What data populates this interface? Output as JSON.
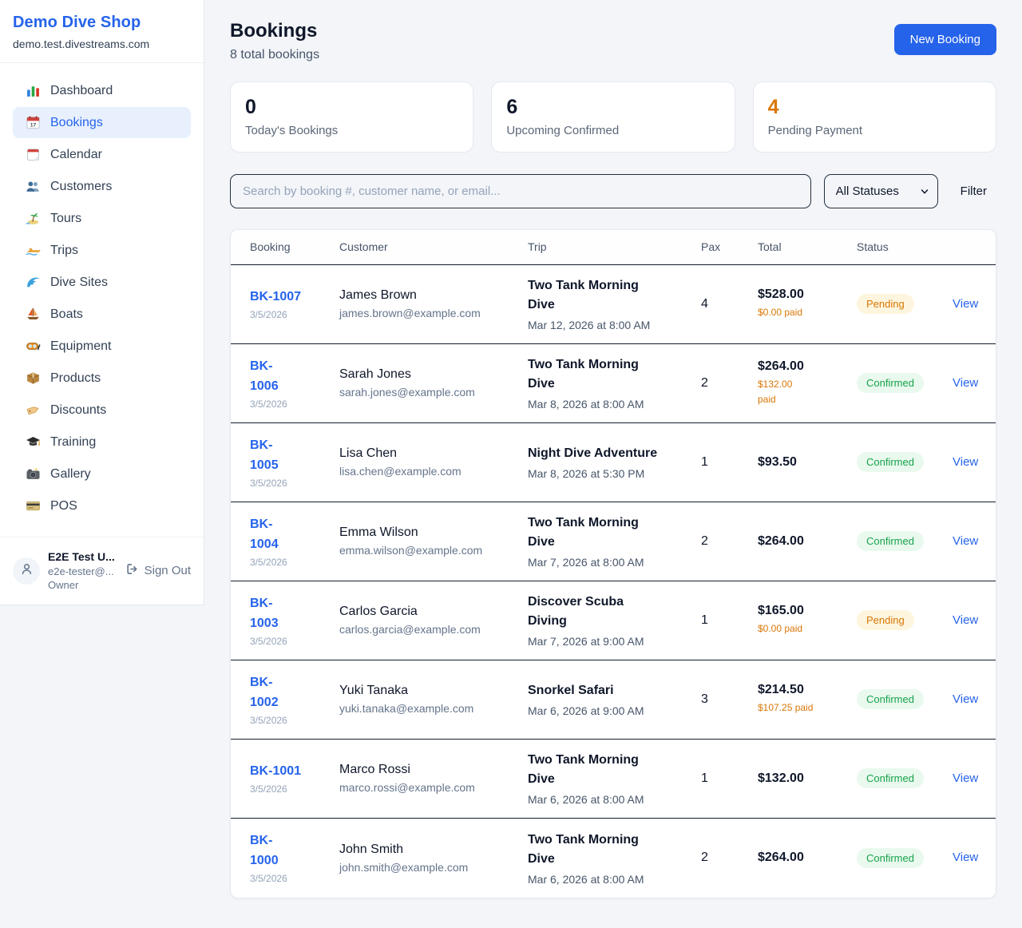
{
  "colors": {
    "primary": "#2563eb",
    "pending_text": "#d97706",
    "pending_bg": "#fdf5dd",
    "confirmed_text": "#16a34a",
    "confirmed_bg": "#e9f9ee",
    "page_bg": "#f3f5f9"
  },
  "sidebar": {
    "brand": "Demo Dive Shop",
    "domain": "demo.test.divestreams.com",
    "items": [
      {
        "label": "Dashboard",
        "icon": "bar-chart",
        "active": false
      },
      {
        "label": "Bookings",
        "icon": "calendar-date",
        "active": true
      },
      {
        "label": "Calendar",
        "icon": "tear-off-calendar",
        "active": false
      },
      {
        "label": "Customers",
        "icon": "people",
        "active": false
      },
      {
        "label": "Tours",
        "icon": "island",
        "active": false
      },
      {
        "label": "Trips",
        "icon": "speedboat",
        "active": false
      },
      {
        "label": "Dive Sites",
        "icon": "wave",
        "active": false
      },
      {
        "label": "Boats",
        "icon": "sailboat",
        "active": false
      },
      {
        "label": "Equipment",
        "icon": "diving-mask",
        "active": false
      },
      {
        "label": "Products",
        "icon": "package",
        "active": false
      },
      {
        "label": "Discounts",
        "icon": "tag",
        "active": false
      },
      {
        "label": "Training",
        "icon": "graduation-cap",
        "active": false
      },
      {
        "label": "Gallery",
        "icon": "camera",
        "active": false
      },
      {
        "label": "POS",
        "icon": "credit-card",
        "active": false
      }
    ],
    "user": {
      "name": "E2E Test U...",
      "email": "e2e-tester@...",
      "role": "Owner",
      "sign_out_label": "Sign Out"
    }
  },
  "header": {
    "title": "Bookings",
    "subtitle": "8 total bookings",
    "new_booking_label": "New Booking"
  },
  "stats": [
    {
      "value": "0",
      "label": "Today's Bookings",
      "accent": false
    },
    {
      "value": "6",
      "label": "Upcoming Confirmed",
      "accent": false
    },
    {
      "value": "4",
      "label": "Pending Payment",
      "accent": true
    }
  ],
  "controls": {
    "search_placeholder": "Search by booking #, customer name, or email...",
    "status_filter_value": "All Statuses",
    "filter_label": "Filter"
  },
  "table": {
    "columns": [
      "Booking",
      "Customer",
      "Trip",
      "Pax",
      "Total",
      "Status",
      ""
    ],
    "rows": [
      {
        "id": "BK-1007",
        "date": "3/5/2026",
        "customer": "James Brown",
        "email": "james.brown@example.com",
        "trip": "Two Tank Morning\nDive",
        "trip_date": "Mar 12, 2026 at 8:00 AM",
        "pax": "4",
        "total": "$528.00",
        "paid": "$0.00 paid",
        "status": "Pending",
        "action": "View"
      },
      {
        "id": "BK-\n1006",
        "date": "3/5/2026",
        "customer": "Sarah Jones",
        "email": "sarah.jones@example.com",
        "trip": "Two Tank Morning\nDive",
        "trip_date": "Mar 8, 2026 at 8:00 AM",
        "pax": "2",
        "total": "$264.00",
        "paid": "$132.00\npaid",
        "status": "Confirmed",
        "action": "View"
      },
      {
        "id": "BK-\n1005",
        "date": "3/5/2026",
        "customer": "Lisa Chen",
        "email": "lisa.chen@example.com",
        "trip": "Night Dive Adventure",
        "trip_date": "Mar 8, 2026 at 5:30 PM",
        "pax": "1",
        "total": "$93.50",
        "paid": null,
        "status": "Confirmed",
        "action": "View"
      },
      {
        "id": "BK-\n1004",
        "date": "3/5/2026",
        "customer": "Emma Wilson",
        "email": "emma.wilson@example.com",
        "trip": "Two Tank Morning\nDive",
        "trip_date": "Mar 7, 2026 at 8:00 AM",
        "pax": "2",
        "total": "$264.00",
        "paid": null,
        "status": "Confirmed",
        "action": "View"
      },
      {
        "id": "BK-\n1003",
        "date": "3/5/2026",
        "customer": "Carlos Garcia",
        "email": "carlos.garcia@example.com",
        "trip": "Discover Scuba\nDiving",
        "trip_date": "Mar 7, 2026 at 9:00 AM",
        "pax": "1",
        "total": "$165.00",
        "paid": "$0.00 paid",
        "status": "Pending",
        "action": "View"
      },
      {
        "id": "BK-\n1002",
        "date": "3/5/2026",
        "customer": "Yuki Tanaka",
        "email": "yuki.tanaka@example.com",
        "trip": "Snorkel Safari",
        "trip_date": "Mar 6, 2026 at 9:00 AM",
        "pax": "3",
        "total": "$214.50",
        "paid": "$107.25 paid",
        "status": "Confirmed",
        "action": "View"
      },
      {
        "id": "BK-1001",
        "date": "3/5/2026",
        "customer": "Marco Rossi",
        "email": "marco.rossi@example.com",
        "trip": "Two Tank Morning\nDive",
        "trip_date": "Mar 6, 2026 at 8:00 AM",
        "pax": "1",
        "total": "$132.00",
        "paid": null,
        "status": "Confirmed",
        "action": "View"
      },
      {
        "id": "BK-\n1000",
        "date": "3/5/2026",
        "customer": "John Smith",
        "email": "john.smith@example.com",
        "trip": "Two Tank Morning\nDive",
        "trip_date": "Mar 6, 2026 at 8:00 AM",
        "pax": "2",
        "total": "$264.00",
        "paid": null,
        "status": "Confirmed",
        "action": "View"
      }
    ]
  }
}
